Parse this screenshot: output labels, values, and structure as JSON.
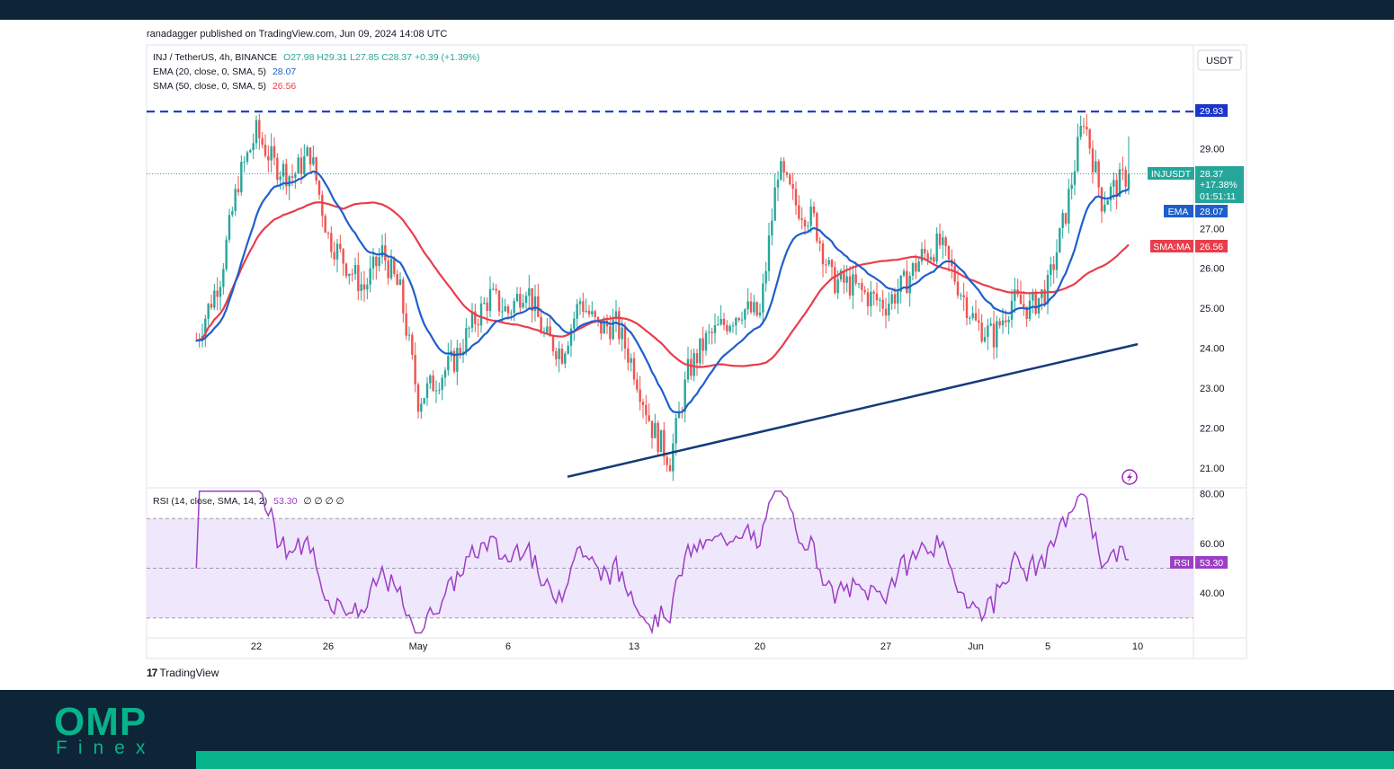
{
  "header": {
    "published": "ranadagger published on TradingView.com, Jun 09, 2024 14:08 UTC"
  },
  "legend": {
    "symbol": "INJ / TetherUS, 4h, BINANCE",
    "ohlc": "O27.98 H29.31 L27.85 C28.37 +0.39 (+1.39%)",
    "ema_label": "EMA (20, close, 0, SMA, 5)",
    "ema_value": "28.07",
    "sma_label": "SMA (50, close, 0, SMA, 5)",
    "sma_value": "26.56",
    "rsi_label": "RSI (14, close, SMA, 14, 2)",
    "rsi_value": "53.30",
    "rsi_extra": "∅ ∅ ∅ ∅"
  },
  "currency": "USDT",
  "price_tags": {
    "resistance": "29.93",
    "symbol": "INJUSDT",
    "price": "28.37",
    "change": "+17.38%",
    "countdown": "01:51:11",
    "ema_tag": "EMA",
    "ema_value": "28.07",
    "sma_tag": "SMA:MA",
    "sma_value": "26.56",
    "rsi_tag": "RSI",
    "rsi_value": "53.30"
  },
  "branding": {
    "tradingview": "TradingView",
    "tv_logo": "17",
    "site_logo": "OMP",
    "site_sub": "Finex"
  },
  "colors": {
    "up": "#26a69a",
    "down": "#ef5350",
    "ema": "#1e5fcc",
    "sma": "#e83e4c",
    "resistance": "#1a35c9",
    "trendline": "#123a7a",
    "rsi": "#9c3fc4",
    "rsi_band": "#efe7fb",
    "band_dark": "#0d2537",
    "brand_green": "#06b38a"
  },
  "chart_data": {
    "type": "candlestick",
    "symbol": "INJ / TetherUS",
    "interval": "4h",
    "exchange": "BINANCE",
    "x_ticks": [
      "22",
      "26",
      "May",
      "6",
      "13",
      "20",
      "27",
      "Jun",
      "5",
      "10"
    ],
    "y_ticks": [
      "21.00",
      "22.00",
      "23.00",
      "24.00",
      "25.00",
      "26.00",
      "27.00",
      "29.00"
    ],
    "ylim": [
      20.5,
      31.6
    ],
    "rsi_ticks": [
      "40.00",
      "60.00",
      "80.00"
    ],
    "rsi_ylim": [
      22,
      82
    ],
    "rsi_bands": [
      30,
      70
    ],
    "resistance": 29.93,
    "trendline": [
      [
        "May 10",
        20.85
      ],
      [
        "Jun 10",
        24.1
      ]
    ],
    "last": {
      "open": 27.98,
      "high": 29.31,
      "low": 27.85,
      "close": 28.37,
      "change": 0.39,
      "change_pct": 1.39
    },
    "ema20_last": 28.07,
    "sma50_last": 26.56,
    "rsi_last": 53.3,
    "close_anchors": [
      [
        "Apr 18 16:00",
        24.2
      ],
      [
        "Apr 20",
        25.8
      ],
      [
        "Apr 21",
        28.2
      ],
      [
        "Apr 22",
        29.4
      ],
      [
        "Apr 23",
        28.6
      ],
      [
        "Apr 24",
        28.3
      ],
      [
        "Apr 25",
        28.9
      ],
      [
        "Apr 26",
        26.8
      ],
      [
        "Apr 27",
        26.1
      ],
      [
        "Apr 28",
        25.5
      ],
      [
        "Apr 29",
        26.4
      ],
      [
        "Apr 30",
        25.4
      ],
      [
        "May 1",
        22.7
      ],
      [
        "May 2",
        23.2
      ],
      [
        "May 3",
        23.7
      ],
      [
        "May 4",
        24.6
      ],
      [
        "May 5",
        25.3
      ],
      [
        "May 6",
        24.9
      ],
      [
        "May 7",
        25.6
      ],
      [
        "May 8",
        24.3
      ],
      [
        "May 9",
        23.9
      ],
      [
        "May 10",
        25.2
      ],
      [
        "May 11",
        24.5
      ],
      [
        "May 12",
        24.6
      ],
      [
        "May 13",
        23.5
      ],
      [
        "May 14",
        22.0
      ],
      [
        "May 15",
        21.2
      ],
      [
        "May 16",
        23.4
      ],
      [
        "May 17",
        24.2
      ],
      [
        "May 18",
        24.6
      ],
      [
        "May 19",
        25.0
      ],
      [
        "May 20",
        24.8
      ],
      [
        "May 21",
        28.5
      ],
      [
        "May 22",
        27.6
      ],
      [
        "May 23",
        27.2
      ],
      [
        "May 24",
        25.7
      ],
      [
        "May 25",
        25.6
      ],
      [
        "May 26",
        25.3
      ],
      [
        "May 27",
        25.1
      ],
      [
        "May 28",
        25.6
      ],
      [
        "May 29",
        26.3
      ],
      [
        "May 30",
        26.6
      ],
      [
        "May 31",
        25.6
      ],
      [
        "Jun 1",
        24.6
      ],
      [
        "Jun 2",
        24.3
      ],
      [
        "Jun 3",
        25.2
      ],
      [
        "Jun 4",
        25.0
      ],
      [
        "Jun 5",
        25.5
      ],
      [
        "Jun 6",
        27.4
      ],
      [
        "Jun 7",
        29.8
      ],
      [
        "Jun 8",
        27.7
      ],
      [
        "Jun 9 12:00",
        28.37
      ]
    ]
  }
}
